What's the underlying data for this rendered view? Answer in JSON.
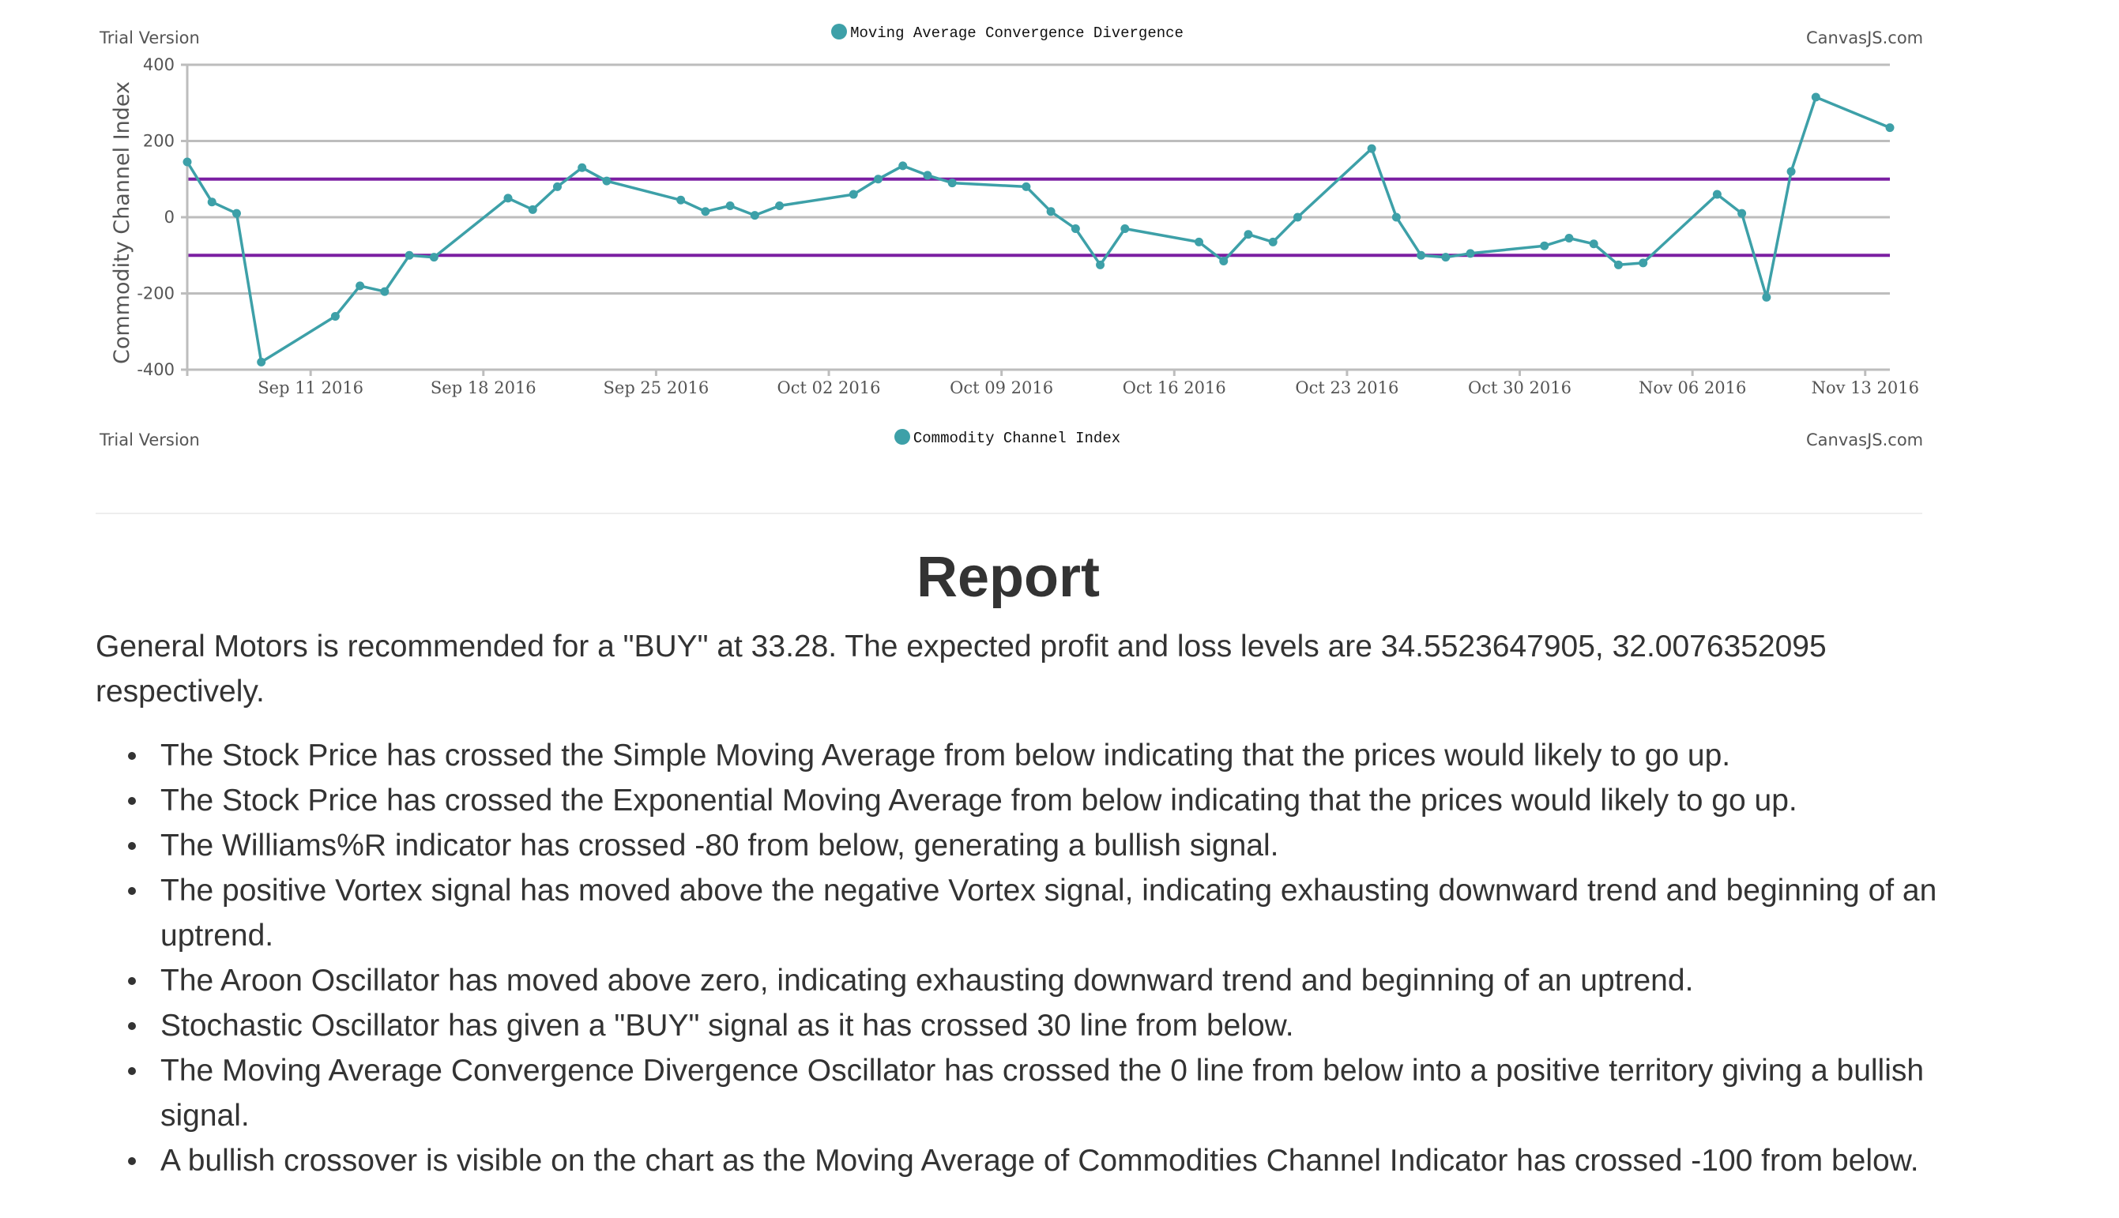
{
  "top_watermark_left": "Trial Version",
  "top_watermark_right": "CanvasJS.com",
  "top_legend_label": "Moving Average Convergence Divergence",
  "bottom_watermark_left": "Trial Version",
  "bottom_watermark_right": "CanvasJS.com",
  "colors": {
    "series": "#3da0a8",
    "threshold": "#7b1fa2",
    "grid": "#bdbdbd"
  },
  "chart_data": {
    "type": "line",
    "ylabel": "Commodity Channel Index",
    "legend": "Commodity Channel Index",
    "ylim": [
      -400,
      400
    ],
    "yticks": [
      400,
      200,
      0,
      -200,
      -400
    ],
    "xlim": [
      "2016-09-06",
      "2016-11-14"
    ],
    "xticks": [
      "Sep 11 2016",
      "Sep 18 2016",
      "Sep 25 2016",
      "Oct 02 2016",
      "Oct 09 2016",
      "Oct 16 2016",
      "Oct 23 2016",
      "Oct 30 2016",
      "Nov 06 2016",
      "Nov 13 2016"
    ],
    "xtick_dates": [
      "2016-09-11",
      "2016-09-18",
      "2016-09-25",
      "2016-10-02",
      "2016-10-09",
      "2016-10-16",
      "2016-10-23",
      "2016-10-30",
      "2016-11-06",
      "2016-11-13"
    ],
    "reference_lines": [
      100,
      -100
    ],
    "series": [
      {
        "name": "Commodity Channel Index",
        "x": [
          "2016-09-06",
          "2016-09-07",
          "2016-09-08",
          "2016-09-09",
          "2016-09-12",
          "2016-09-13",
          "2016-09-14",
          "2016-09-15",
          "2016-09-16",
          "2016-09-19",
          "2016-09-20",
          "2016-09-21",
          "2016-09-22",
          "2016-09-23",
          "2016-09-26",
          "2016-09-27",
          "2016-09-28",
          "2016-09-29",
          "2016-09-30",
          "2016-10-03",
          "2016-10-04",
          "2016-10-05",
          "2016-10-06",
          "2016-10-07",
          "2016-10-10",
          "2016-10-11",
          "2016-10-12",
          "2016-10-13",
          "2016-10-14",
          "2016-10-17",
          "2016-10-18",
          "2016-10-19",
          "2016-10-20",
          "2016-10-21",
          "2016-10-24",
          "2016-10-25",
          "2016-10-26",
          "2016-10-27",
          "2016-10-28",
          "2016-10-31",
          "2016-11-01",
          "2016-11-02",
          "2016-11-03",
          "2016-11-04",
          "2016-11-07",
          "2016-11-08",
          "2016-11-09",
          "2016-11-10",
          "2016-11-11",
          "2016-11-14"
        ],
        "y": [
          145,
          40,
          10,
          -380,
          -260,
          -180,
          -195,
          -100,
          -105,
          50,
          20,
          80,
          130,
          95,
          45,
          15,
          30,
          5,
          30,
          60,
          100,
          135,
          110,
          90,
          80,
          15,
          -30,
          -125,
          -30,
          -65,
          -115,
          -45,
          -65,
          0,
          180,
          0,
          -100,
          -105,
          -95,
          -75,
          -55,
          -70,
          -125,
          -120,
          60,
          10,
          -210,
          120,
          315,
          235
        ]
      }
    ]
  },
  "report": {
    "title": "Report",
    "summary": "General Motors is recommended for a \"BUY\" at 33.28. The expected profit and loss levels are 34.5523647905, 32.0076352095 respectively.",
    "reasons": [
      "The Stock Price has crossed the Simple Moving Average from below indicating that the prices would likely to go up.",
      "The Stock Price has crossed the Exponential Moving Average from below indicating that the prices would likely to go up.",
      "The Williams%R indicator has crossed -80 from below, generating a bullish signal.",
      "The positive Vortex signal has moved above the negative Vortex signal, indicating exhausting downward trend and beginning of an uptrend.",
      "The Aroon Oscillator has moved above zero, indicating exhausting downward trend and beginning of an uptrend.",
      "Stochastic Oscillator has given a \"BUY\" signal as it has crossed 30 line from below.",
      "The Moving Average Convergence Divergence Oscillator has crossed the 0 line from below into a positive territory giving a bullish signal.",
      "A bullish crossover is visible on the chart as the Moving Average of Commodities Channel Indicator has crossed -100 from below."
    ]
  }
}
